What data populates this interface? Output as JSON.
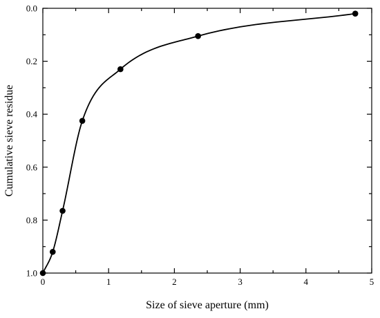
{
  "chart_data": {
    "type": "line",
    "title": "",
    "xlabel": "Size of sieve aperture (mm)",
    "ylabel": "Cumulative sieve residue",
    "xlim": [
      0,
      5
    ],
    "ylim": [
      0.0,
      1.0
    ],
    "y_inverted": true,
    "grid": false,
    "legend": "none",
    "x_ticks": [
      0,
      1,
      2,
      3,
      4,
      5
    ],
    "x_tick_labels": [
      "0",
      "1",
      "2",
      "3",
      "4",
      "5"
    ],
    "y_ticks": [
      0.0,
      0.2,
      0.4,
      0.6,
      0.8,
      1.0
    ],
    "y_tick_labels": [
      "0.0",
      "0.2",
      "0.4",
      "0.6",
      "0.8",
      "1.0"
    ],
    "series": [
      {
        "x": [
          0.0,
          0.15,
          0.3,
          0.6,
          1.18,
          2.36,
          4.75
        ],
        "y": [
          1.0,
          0.92,
          0.765,
          0.425,
          0.23,
          0.105,
          0.02
        ]
      }
    ],
    "colors": {
      "line": "#000000",
      "marker": "#000000"
    }
  }
}
